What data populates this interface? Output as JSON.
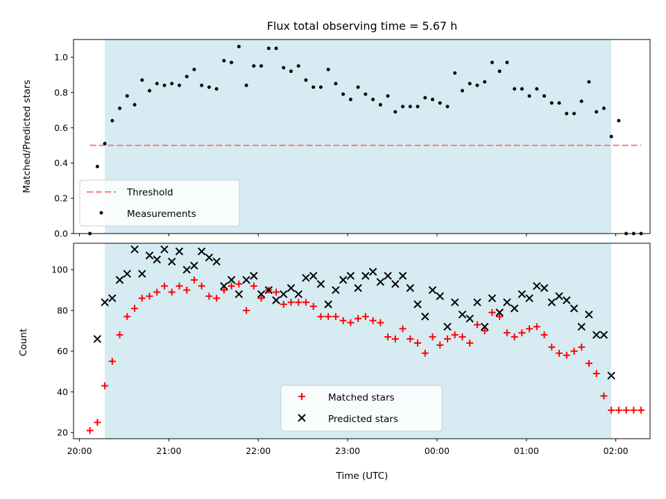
{
  "chart_data": [
    {
      "type": "scatter",
      "title": "Flux total observing time = 5.67 h",
      "xlabel": "",
      "ylabel": "Matched/Predicted stars",
      "ylim": [
        0,
        1.1
      ],
      "yticks": [
        "0.0",
        "0.2",
        "0.4",
        "0.6",
        "0.8",
        "1.0"
      ],
      "shaded_window": [
        "20:17",
        "01:57"
      ],
      "threshold": {
        "name": "Threshold",
        "value": 0.5,
        "x_range": [
          "20:07",
          "02:17"
        ],
        "color": "#f08080"
      },
      "legend_position": "lower-left",
      "series": [
        {
          "name": "Measurements",
          "color": "#000000",
          "x": [
            "20:07",
            "20:12",
            "20:17",
            "20:22",
            "20:27",
            "20:32",
            "20:37",
            "20:42",
            "20:47",
            "20:52",
            "20:57",
            "21:02",
            "21:07",
            "21:12",
            "21:17",
            "21:22",
            "21:27",
            "21:32",
            "21:37",
            "21:42",
            "21:47",
            "21:52",
            "21:57",
            "22:02",
            "22:07",
            "22:12",
            "22:17",
            "22:22",
            "22:27",
            "22:32",
            "22:37",
            "22:42",
            "22:47",
            "22:52",
            "22:57",
            "23:02",
            "23:07",
            "23:12",
            "23:17",
            "23:22",
            "23:27",
            "23:32",
            "23:37",
            "23:42",
            "23:47",
            "23:52",
            "23:57",
            "00:02",
            "00:07",
            "00:12",
            "00:17",
            "00:22",
            "00:27",
            "00:32",
            "00:37",
            "00:42",
            "00:47",
            "00:52",
            "00:57",
            "01:02",
            "01:07",
            "01:12",
            "01:17",
            "01:22",
            "01:27",
            "01:32",
            "01:37",
            "01:42",
            "01:47",
            "01:52",
            "01:57",
            "02:02",
            "02:07",
            "02:12",
            "02:17"
          ],
          "values": [
            0.0,
            0.38,
            0.51,
            0.64,
            0.71,
            0.78,
            0.73,
            0.87,
            0.81,
            0.85,
            0.84,
            0.85,
            0.84,
            0.89,
            0.93,
            0.84,
            0.83,
            0.82,
            0.98,
            0.97,
            1.06,
            0.84,
            0.95,
            0.95,
            1.05,
            1.05,
            0.94,
            0.92,
            0.95,
            0.87,
            0.83,
            0.83,
            0.93,
            0.85,
            0.79,
            0.76,
            0.83,
            0.79,
            0.76,
            0.73,
            0.78,
            0.69,
            0.72,
            0.72,
            0.72,
            0.77,
            0.76,
            0.74,
            0.72,
            0.91,
            0.81,
            0.85,
            0.84,
            0.86,
            0.97,
            0.92,
            0.97,
            0.82,
            0.82,
            0.78,
            0.82,
            0.78,
            0.74,
            0.74,
            0.68,
            0.68,
            0.75,
            0.86,
            0.69,
            0.71,
            0.55,
            0.64,
            0.0,
            0.0,
            0.0
          ]
        }
      ]
    },
    {
      "type": "scatter",
      "title": "",
      "xlabel": "Time (UTC)",
      "ylabel": "Count",
      "ylim": [
        17,
        113
      ],
      "yticks": [
        "20",
        "40",
        "60",
        "80",
        "100"
      ],
      "xticks": [
        "20:00",
        "21:00",
        "22:00",
        "23:00",
        "00:00",
        "01:00",
        "02:00"
      ],
      "shaded_window": [
        "20:17",
        "01:57"
      ],
      "legend_position": "lower-center",
      "series": [
        {
          "name": "Matched stars",
          "marker": "plus",
          "color": "#ff0000",
          "x": [
            "20:07",
            "20:12",
            "20:17",
            "20:22",
            "20:27",
            "20:32",
            "20:37",
            "20:42",
            "20:47",
            "20:52",
            "20:57",
            "21:02",
            "21:07",
            "21:12",
            "21:17",
            "21:22",
            "21:27",
            "21:32",
            "21:37",
            "21:42",
            "21:47",
            "21:52",
            "21:57",
            "22:02",
            "22:07",
            "22:12",
            "22:17",
            "22:22",
            "22:27",
            "22:32",
            "22:37",
            "22:42",
            "22:47",
            "22:52",
            "22:57",
            "23:02",
            "23:07",
            "23:12",
            "23:17",
            "23:22",
            "23:27",
            "23:32",
            "23:37",
            "23:42",
            "23:47",
            "23:52",
            "23:57",
            "00:02",
            "00:07",
            "00:12",
            "00:17",
            "00:22",
            "00:27",
            "00:32",
            "00:37",
            "00:42",
            "00:47",
            "00:52",
            "00:57",
            "01:02",
            "01:07",
            "01:12",
            "01:17",
            "01:22",
            "01:27",
            "01:32",
            "01:37",
            "01:42",
            "01:47",
            "01:52",
            "01:57",
            "02:02",
            "02:07",
            "02:12",
            "02:17"
          ],
          "values": [
            21,
            25,
            43,
            55,
            68,
            77,
            81,
            86,
            87,
            89,
            92,
            89,
            92,
            90,
            95,
            92,
            87,
            86,
            90,
            92,
            93,
            80,
            92,
            86,
            90,
            89,
            83,
            84,
            84,
            84,
            82,
            77,
            77,
            77,
            75,
            74,
            76,
            77,
            75,
            74,
            67,
            66,
            71,
            66,
            64,
            59,
            67,
            63,
            66,
            68,
            67,
            64,
            73,
            70,
            79,
            77,
            69,
            67,
            69,
            71,
            72,
            68,
            62,
            59,
            58,
            60,
            62,
            54,
            49,
            38,
            31,
            31,
            31,
            31,
            31
          ]
        },
        {
          "name": "Predicted stars",
          "marker": "x",
          "color": "#000000",
          "x": [
            "20:12",
            "20:17",
            "20:22",
            "20:27",
            "20:32",
            "20:37",
            "20:42",
            "20:47",
            "20:52",
            "20:57",
            "21:02",
            "21:07",
            "21:12",
            "21:17",
            "21:22",
            "21:27",
            "21:32",
            "21:37",
            "21:42",
            "21:47",
            "21:52",
            "21:57",
            "22:02",
            "22:07",
            "22:12",
            "22:17",
            "22:22",
            "22:27",
            "22:32",
            "22:37",
            "22:42",
            "22:47",
            "22:52",
            "22:57",
            "23:02",
            "23:07",
            "23:12",
            "23:17",
            "23:22",
            "23:27",
            "23:32",
            "23:37",
            "23:42",
            "23:47",
            "23:52",
            "23:57",
            "00:02",
            "00:07",
            "00:12",
            "00:17",
            "00:22",
            "00:27",
            "00:32",
            "00:37",
            "00:42",
            "00:47",
            "00:52",
            "00:57",
            "01:02",
            "01:07",
            "01:12",
            "01:17",
            "01:22",
            "01:27",
            "01:32",
            "01:37",
            "01:42",
            "01:47",
            "01:52",
            "01:57"
          ],
          "values": [
            66,
            84,
            86,
            95,
            98,
            110,
            98,
            107,
            105,
            110,
            104,
            109,
            100,
            102,
            109,
            106,
            104,
            92,
            95,
            88,
            95,
            97,
            88,
            90,
            85,
            88,
            91,
            88,
            96,
            97,
            93,
            83,
            90,
            95,
            97,
            91,
            97,
            99,
            94,
            97,
            93,
            97,
            91,
            83,
            77,
            90,
            87,
            72,
            84,
            78,
            76,
            84,
            72,
            86,
            79,
            84,
            81,
            88,
            86,
            92,
            91,
            84,
            87,
            85,
            81,
            72,
            78,
            68,
            68,
            48
          ]
        }
      ]
    }
  ]
}
